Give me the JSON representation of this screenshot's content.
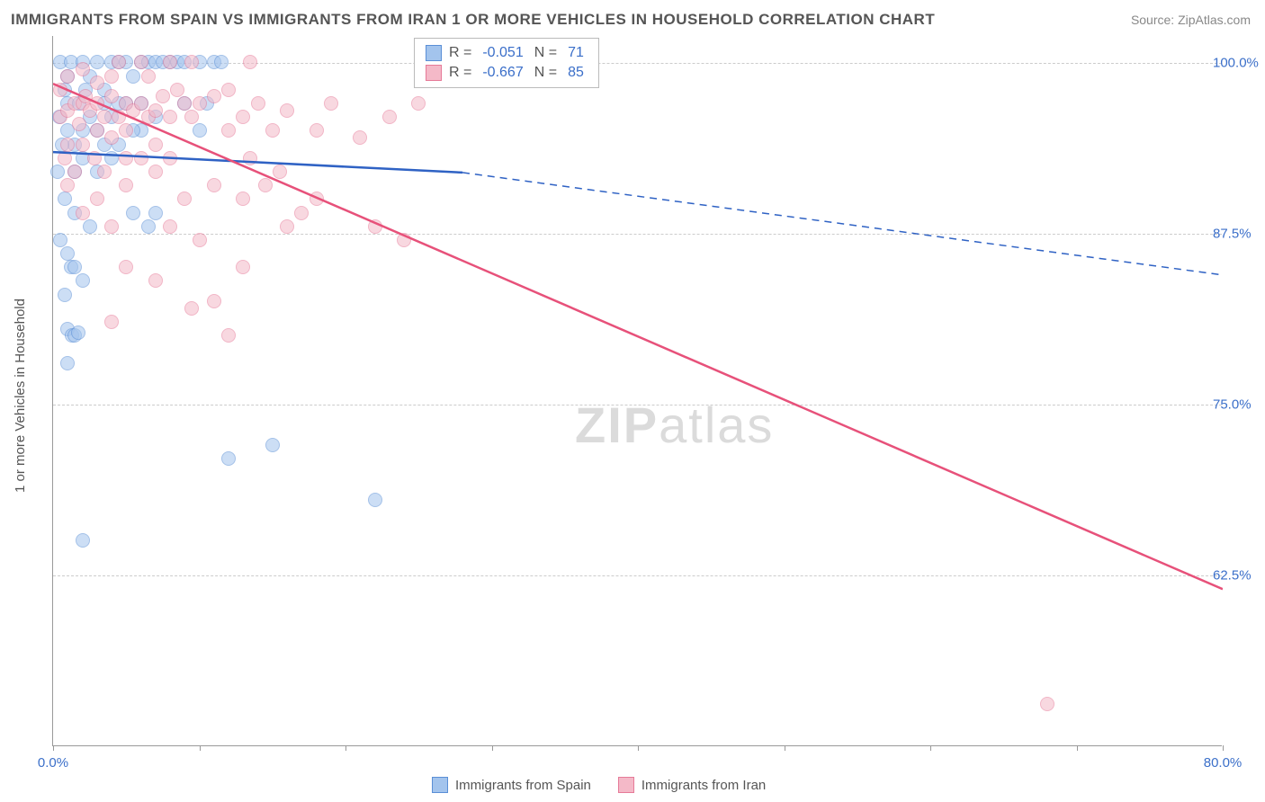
{
  "title": "IMMIGRANTS FROM SPAIN VS IMMIGRANTS FROM IRAN 1 OR MORE VEHICLES IN HOUSEHOLD CORRELATION CHART",
  "source": "Source: ZipAtlas.com",
  "watermark": {
    "bold": "ZIP",
    "rest": "atlas"
  },
  "y_axis_title": "1 or more Vehicles in Household",
  "chart": {
    "type": "scatter",
    "xlim": [
      0,
      80
    ],
    "ylim": [
      50,
      102
    ],
    "x_ticks": [
      0,
      10,
      20,
      30,
      40,
      50,
      60,
      70,
      80
    ],
    "x_tick_labels": {
      "0": "0.0%",
      "80": "80.0%"
    },
    "y_gridlines": [
      62.5,
      75.0,
      87.5,
      100.0
    ],
    "y_tick_labels": [
      "62.5%",
      "75.0%",
      "87.5%",
      "100.0%"
    ],
    "background_color": "#ffffff",
    "grid_color": "#cccccc",
    "axis_color": "#999999",
    "label_color": "#3b6fc9",
    "marker_radius": 8
  },
  "series": [
    {
      "name": "Immigrants from Spain",
      "color_fill": "#a3c4ed",
      "color_stroke": "#5a8fd6",
      "R": "-0.051",
      "N": "71",
      "trend": {
        "x1": 0,
        "y1": 93.5,
        "x2_solid": 28,
        "y2_solid": 92.0,
        "x2_dash": 80,
        "y2_dash": 84.5,
        "line_color": "#2f62c4",
        "line_width": 2.5
      },
      "points": [
        [
          0.5,
          100
        ],
        [
          0.8,
          98
        ],
        [
          1.2,
          100
        ],
        [
          1.0,
          97
        ],
        [
          2.0,
          100
        ],
        [
          2.5,
          99
        ],
        [
          3.0,
          100
        ],
        [
          3.5,
          98
        ],
        [
          4.0,
          100
        ],
        [
          4.5,
          100
        ],
        [
          5.0,
          100
        ],
        [
          5.5,
          99
        ],
        [
          6.0,
          100
        ],
        [
          6.5,
          100
        ],
        [
          7.0,
          100
        ],
        [
          8.0,
          100
        ],
        [
          8.5,
          100
        ],
        [
          9.0,
          100
        ],
        [
          10.0,
          100
        ],
        [
          7.5,
          100
        ],
        [
          11.0,
          100
        ],
        [
          1.0,
          95
        ],
        [
          1.5,
          94
        ],
        [
          2.0,
          95
        ],
        [
          2.5,
          96
        ],
        [
          3.0,
          95
        ],
        [
          3.5,
          94
        ],
        [
          4.0,
          96
        ],
        [
          1.5,
          92
        ],
        [
          2.0,
          93
        ],
        [
          3.0,
          92
        ],
        [
          0.8,
          90
        ],
        [
          1.5,
          89
        ],
        [
          2.5,
          88
        ],
        [
          0.5,
          87
        ],
        [
          1.0,
          86
        ],
        [
          5.0,
          97
        ],
        [
          6.0,
          97
        ],
        [
          4.0,
          93
        ],
        [
          0.8,
          83
        ],
        [
          1.2,
          85
        ],
        [
          1.5,
          85
        ],
        [
          2.0,
          84
        ],
        [
          5.5,
          89
        ],
        [
          6.5,
          88
        ],
        [
          7.0,
          89
        ],
        [
          1.0,
          80.5
        ],
        [
          1.3,
          80
        ],
        [
          1.5,
          80
        ],
        [
          1.7,
          80.2
        ],
        [
          1.0,
          78
        ],
        [
          2.0,
          65
        ],
        [
          12,
          71
        ],
        [
          22,
          68
        ],
        [
          15,
          72
        ],
        [
          11.5,
          100
        ],
        [
          9.0,
          97
        ],
        [
          10.5,
          97
        ],
        [
          3.5,
          97
        ],
        [
          4.5,
          97
        ],
        [
          2.2,
          98
        ],
        [
          1.8,
          97
        ],
        [
          0.6,
          94
        ],
        [
          0.3,
          92
        ],
        [
          0.4,
          96
        ],
        [
          6.0,
          95
        ],
        [
          7.0,
          96
        ],
        [
          4.5,
          94
        ],
        [
          5.5,
          95
        ],
        [
          10.0,
          95
        ],
        [
          1.0,
          99
        ]
      ]
    },
    {
      "name": "Immigrants from Iran",
      "color_fill": "#f4b9c8",
      "color_stroke": "#e67a98",
      "R": "-0.667",
      "N": "85",
      "trend": {
        "x1": 0,
        "y1": 98.5,
        "x2_solid": 80,
        "y2_solid": 61.5,
        "line_color": "#e7517a",
        "line_width": 2.5
      },
      "points": [
        [
          0.5,
          96
        ],
        [
          1.0,
          96.5
        ],
        [
          1.5,
          97
        ],
        [
          2.0,
          97
        ],
        [
          2.5,
          96.5
        ],
        [
          3.0,
          97
        ],
        [
          3.5,
          96
        ],
        [
          4.0,
          97.5
        ],
        [
          4.5,
          96
        ],
        [
          5.0,
          97
        ],
        [
          5.5,
          96.5
        ],
        [
          6.0,
          97
        ],
        [
          6.5,
          96
        ],
        [
          7.0,
          96.5
        ],
        [
          7.5,
          97.5
        ],
        [
          8.0,
          96
        ],
        [
          8.5,
          98
        ],
        [
          9.0,
          97
        ],
        [
          9.5,
          96
        ],
        [
          10.0,
          97
        ],
        [
          11.0,
          97.5
        ],
        [
          12.0,
          95
        ],
        [
          13.0,
          96
        ],
        [
          14.0,
          97
        ],
        [
          15.0,
          95
        ],
        [
          16.0,
          96.5
        ],
        [
          18.0,
          95
        ],
        [
          19.0,
          97
        ],
        [
          1.0,
          94
        ],
        [
          2.0,
          94
        ],
        [
          3.0,
          95
        ],
        [
          4.0,
          94.5
        ],
        [
          5.0,
          95
        ],
        [
          6.0,
          93
        ],
        [
          7.0,
          94
        ],
        [
          8.0,
          93
        ],
        [
          1.5,
          92
        ],
        [
          3.5,
          92
        ],
        [
          5.0,
          91
        ],
        [
          7.0,
          92
        ],
        [
          21.0,
          94.5
        ],
        [
          23.0,
          96
        ],
        [
          25.0,
          97
        ],
        [
          12.0,
          98
        ],
        [
          13.5,
          100
        ],
        [
          6.0,
          100
        ],
        [
          1.0,
          99
        ],
        [
          2.0,
          99.5
        ],
        [
          4.5,
          100
        ],
        [
          11.0,
          91
        ],
        [
          13.0,
          90
        ],
        [
          14.5,
          91
        ],
        [
          16.0,
          88
        ],
        [
          17.0,
          89
        ],
        [
          18.0,
          90
        ],
        [
          9.0,
          90
        ],
        [
          8.0,
          88
        ],
        [
          10.0,
          87
        ],
        [
          2.0,
          89
        ],
        [
          4.0,
          88
        ],
        [
          22.0,
          88
        ],
        [
          24.0,
          87
        ],
        [
          5.0,
          85
        ],
        [
          7.0,
          84
        ],
        [
          9.5,
          82
        ],
        [
          11.0,
          82.5
        ],
        [
          13.0,
          85
        ],
        [
          12.0,
          80
        ],
        [
          4.0,
          81
        ],
        [
          68.0,
          53
        ],
        [
          3.0,
          98.5
        ],
        [
          4.0,
          99
        ],
        [
          1.8,
          95.5
        ],
        [
          2.8,
          93
        ],
        [
          6.5,
          99
        ],
        [
          8.0,
          100
        ],
        [
          9.5,
          100
        ],
        [
          5.0,
          93
        ],
        [
          13.5,
          93
        ],
        [
          15.5,
          92
        ],
        [
          3.0,
          90
        ],
        [
          1.0,
          91
        ],
        [
          0.5,
          98
        ],
        [
          2.2,
          97.5
        ],
        [
          0.8,
          93
        ]
      ]
    }
  ],
  "legend_stats_label_R": "R =",
  "legend_stats_label_N": "N ="
}
